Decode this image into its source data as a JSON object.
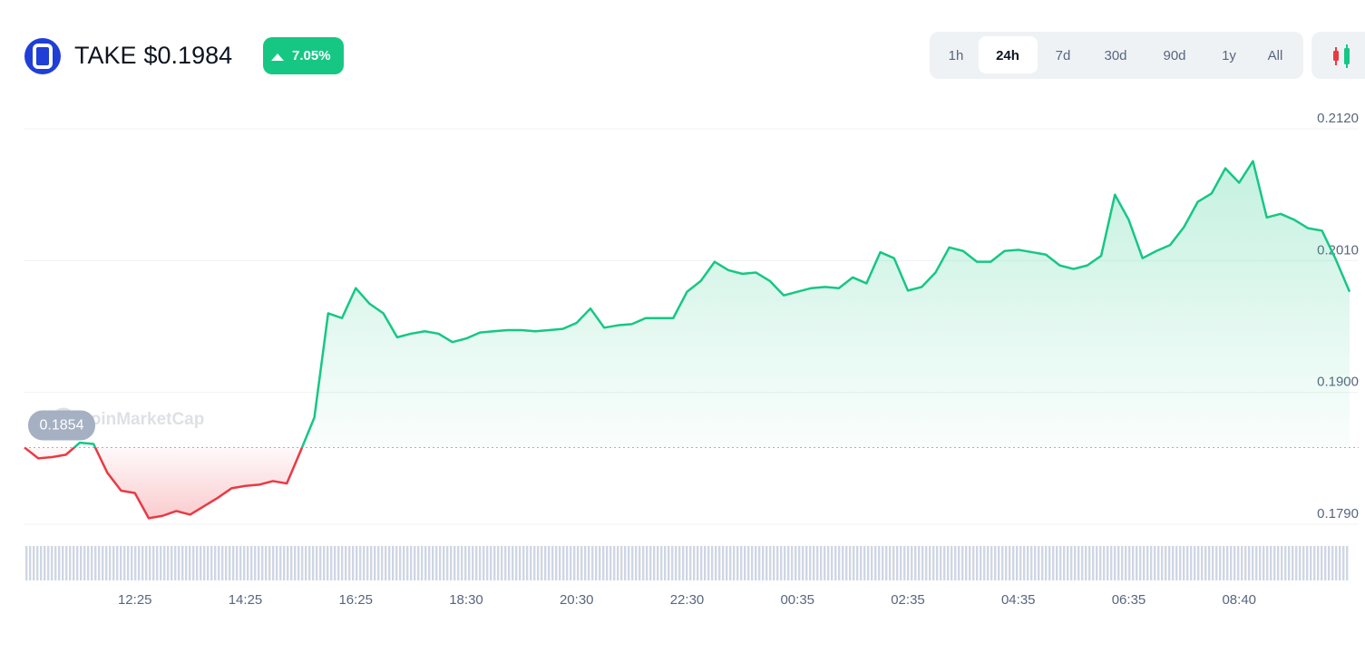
{
  "header": {
    "symbol": "TAKE",
    "price": "$0.1984",
    "change": "7.05%"
  },
  "range_buttons": {
    "options": [
      "1h",
      "24h",
      "7d",
      "30d",
      "90d",
      "1y",
      "All"
    ],
    "selected": 1
  },
  "watermark": "CoinMarketCap",
  "chart_data": {
    "type": "line",
    "categories": [
      null,
      null,
      null,
      null,
      null,
      null,
      null,
      null,
      "12:25",
      null,
      null,
      null,
      null,
      null,
      null,
      null,
      "14:25",
      null,
      null,
      null,
      null,
      null,
      null,
      null,
      "16:25",
      null,
      null,
      null,
      null,
      null,
      null,
      null,
      "18:30",
      null,
      null,
      null,
      null,
      null,
      null,
      null,
      "20:30",
      null,
      null,
      null,
      null,
      null,
      null,
      null,
      "22:30",
      null,
      null,
      null,
      null,
      null,
      null,
      null,
      "00:35",
      null,
      null,
      null,
      null,
      null,
      null,
      null,
      "02:35",
      null,
      null,
      null,
      null,
      null,
      null,
      null,
      "04:35",
      null,
      null,
      null,
      null,
      null,
      null,
      null,
      "06:35",
      null,
      null,
      null,
      null,
      null,
      null,
      null,
      "08:40",
      null,
      null,
      null,
      null,
      null,
      null,
      null,
      null
    ],
    "series": [
      {
        "name": "TAKE",
        "color_up": "#16c784",
        "color_down": "#ea3943",
        "values": [
          0.1854,
          0.1845,
          0.1846,
          0.1848,
          0.1858,
          0.1857,
          0.1833,
          0.1818,
          0.1816,
          0.1795,
          0.1797,
          0.1801,
          0.1798,
          0.1805,
          0.1812,
          0.182,
          0.1822,
          0.1823,
          0.1826,
          0.1824,
          0.1851,
          0.1879,
          0.1966,
          0.1962,
          0.1987,
          0.1974,
          0.1966,
          0.1946,
          0.1949,
          0.1951,
          0.1949,
          0.1942,
          0.1945,
          0.195,
          0.1951,
          0.1952,
          0.1952,
          0.1951,
          0.1952,
          0.1953,
          0.1958,
          0.197,
          0.1954,
          0.1956,
          0.1957,
          0.1962,
          0.1962,
          0.1962,
          0.1984,
          0.1993,
          0.2009,
          0.2002,
          0.1999,
          0.2,
          0.1993,
          0.1981,
          0.1984,
          0.1987,
          0.1988,
          0.1987,
          0.1996,
          0.1991,
          0.2017,
          0.2012,
          0.1985,
          0.1988,
          0.2,
          0.2021,
          0.2018,
          0.2009,
          0.2009,
          0.2018,
          0.2019,
          0.2017,
          0.2015,
          0.2006,
          0.2003,
          0.2006,
          0.2014,
          0.2065,
          0.2044,
          0.2012,
          0.2018,
          0.2023,
          0.2038,
          0.2059,
          0.2066,
          0.2087,
          0.2075,
          0.2093,
          0.2046,
          0.2049,
          0.2044,
          0.2037,
          0.2035,
          0.2011,
          0.1984
        ]
      }
    ],
    "reference": {
      "value": 0.1854,
      "label": "0.1854"
    },
    "ylim": [
      0.179,
      0.212
    ],
    "yticks": [
      {
        "value": 0.179,
        "label": "0.1790"
      },
      {
        "value": 0.19,
        "label": "0.1900"
      },
      {
        "value": 0.201,
        "label": "0.2010"
      },
      {
        "value": 0.212,
        "label": "0.2120"
      }
    ],
    "grid": true
  }
}
